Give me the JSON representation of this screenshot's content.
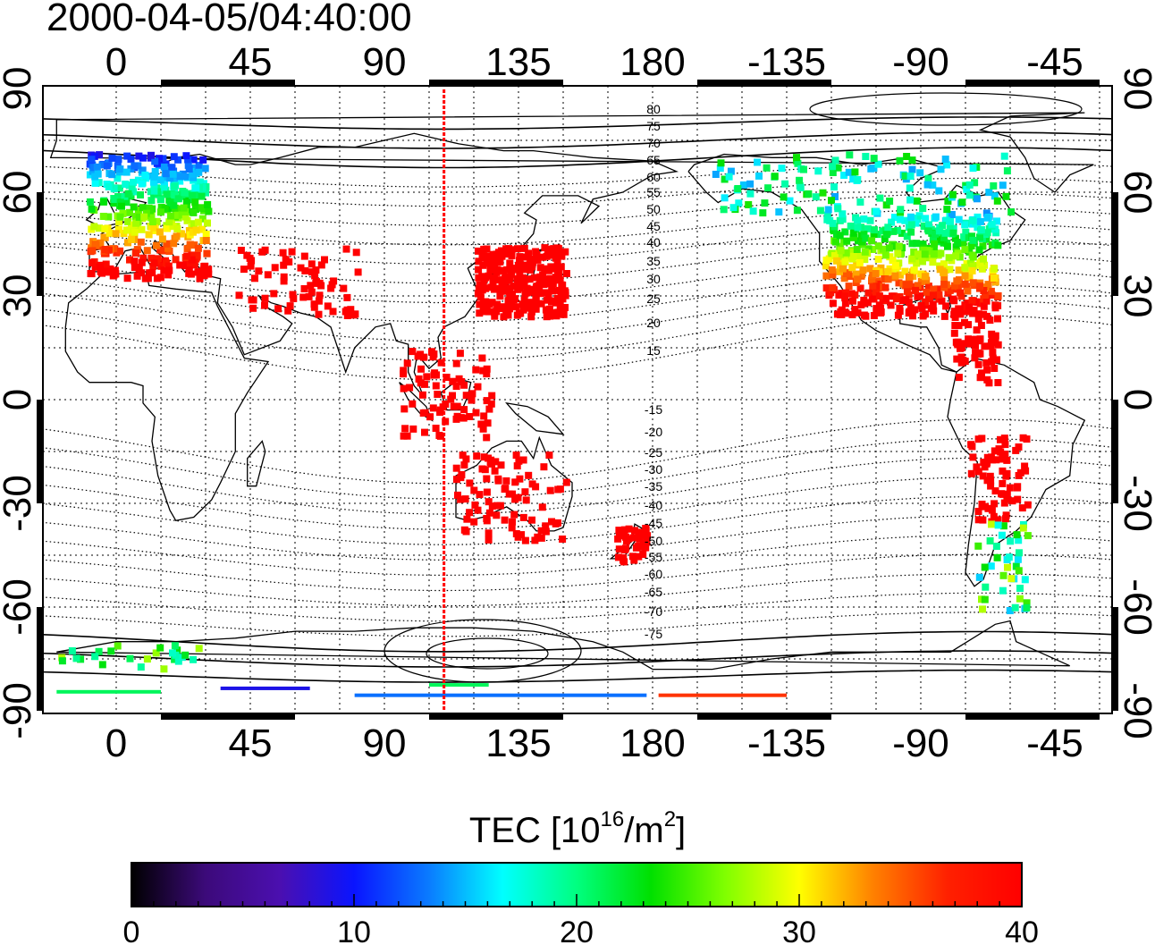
{
  "header": {
    "timestamp": "2000-04-05/04:40:00"
  },
  "map": {
    "top_lon_labels": [
      "0",
      "45",
      "90",
      "135",
      "180",
      "-135",
      "-90",
      "-45"
    ],
    "bottom_lon_labels": [
      "0",
      "45",
      "90",
      "135",
      "180",
      "-135",
      "-90",
      "-45"
    ],
    "left_lat_labels": [
      "90",
      "60",
      "30",
      "0",
      "-30",
      "-60",
      "-90"
    ],
    "right_lat_labels": [
      "90",
      "60",
      "30",
      "0",
      "-30",
      "-60",
      "-90"
    ],
    "contour_labels_north": [
      "80",
      "75",
      "70",
      "65",
      "60",
      "55",
      "50",
      "45",
      "40",
      "35",
      "30",
      "25",
      "20",
      "15"
    ],
    "contour_labels_south": [
      "-15",
      "-20",
      "-25",
      "-30",
      "-35",
      "-40",
      "-45",
      "-50",
      "-55",
      "-60",
      "-65",
      "-70",
      "-75"
    ],
    "terminator_longitude": 110
  },
  "colorbar": {
    "title_prefix": "TEC  [10",
    "title_exp1": "16",
    "title_mid": "/m",
    "title_exp2": "2",
    "title_suffix": "]",
    "tick_labels": [
      "0",
      "10",
      "20",
      "30",
      "40"
    ],
    "stops": [
      "#000000",
      "#3c0a7a",
      "#4b0fb0",
      "#0a14ff",
      "#0a7aff",
      "#00ffff",
      "#00ff80",
      "#00e000",
      "#80ff00",
      "#ffff00",
      "#ff8000",
      "#ff2000",
      "#ff0000"
    ]
  }
}
